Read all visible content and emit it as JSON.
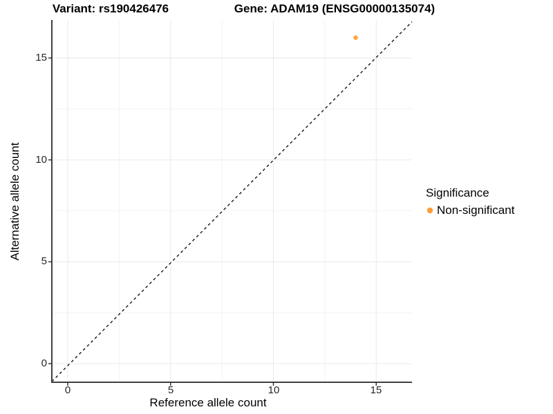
{
  "titles": {
    "variant": "Variant: rs190426476",
    "gene": "Gene: ADAM19 (ENSG00000135074)"
  },
  "axes": {
    "x": {
      "label": "Reference allele count",
      "ticks": [
        "0",
        "5",
        "10",
        "15"
      ]
    },
    "y": {
      "label": "Alternative allele count",
      "ticks": [
        "0",
        "5",
        "10",
        "15"
      ]
    }
  },
  "legend": {
    "title": "Significance",
    "items": [
      {
        "label": "Non-significant",
        "color": "#FA9F33"
      }
    ]
  },
  "chart_data": {
    "type": "scatter",
    "title": "Variant: rs190426476 — Gene: ADAM19 (ENSG00000135074)",
    "xlabel": "Reference allele count",
    "ylabel": "Alternative allele count",
    "xlim": [
      -0.8,
      16.8
    ],
    "ylim": [
      -0.9,
      16.8
    ],
    "x_ticks": [
      0,
      5,
      10,
      15
    ],
    "y_ticks": [
      0,
      5,
      10,
      15
    ],
    "grid": true,
    "legend_position": "right",
    "series": [
      {
        "name": "Non-significant",
        "color": "#FA9F33",
        "points": [
          {
            "x": 14,
            "y": 16
          }
        ]
      }
    ],
    "reference_line": {
      "type": "identity",
      "slope": 1,
      "intercept": 0,
      "style": "dashed",
      "color": "#000000"
    }
  }
}
